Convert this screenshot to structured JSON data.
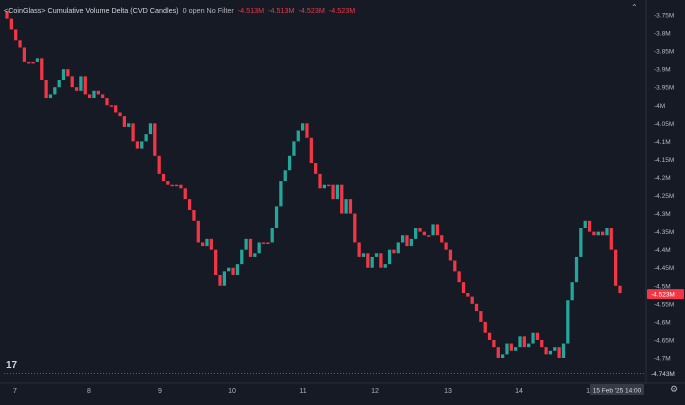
{
  "header": {
    "title": "<CoinGlass> Cumulative Volume Delta (CVD Candles)",
    "status": "0 open No Filter",
    "ohlc": [
      "-4.513M",
      "-4.513M",
      "-4.523M",
      "-4.523M"
    ]
  },
  "colors": {
    "background": "#161a25",
    "up": "#26a69a",
    "down": "#f23645",
    "grid": "#2a2e39",
    "text": "#b2b5be"
  },
  "icons": {
    "logo": "tradingview-logo-icon",
    "collapse": "chevron-up-icon",
    "settings": "gear-icon"
  },
  "chart_data": {
    "type": "candlestick",
    "yunit": "M",
    "ylim": [
      -4.75,
      -3.74
    ],
    "y_ticks": [
      "-3.75M",
      "-3.8M",
      "-3.85M",
      "-3.9M",
      "-3.95M",
      "-4M",
      "-4.05M",
      "-4.1M",
      "-4.15M",
      "-4.2M",
      "-4.25M",
      "-4.3M",
      "-4.35M",
      "-4.4M",
      "-4.45M",
      "-4.5M",
      "-4.55M",
      "-4.6M",
      "-4.65M",
      "-4.7M"
    ],
    "y_tick_values": [
      -3.75,
      -3.8,
      -3.85,
      -3.9,
      -3.95,
      -4.0,
      -4.05,
      -4.1,
      -4.15,
      -4.2,
      -4.25,
      -4.3,
      -4.35,
      -4.4,
      -4.45,
      -4.5,
      -4.55,
      -4.6,
      -4.65,
      -4.7
    ],
    "x_ticks": [
      "7",
      "8",
      "9",
      "10",
      "11",
      "12",
      "13",
      "14",
      "15"
    ],
    "current_label": "-4.523M",
    "current_value": -4.523,
    "low_label": "-4.743M",
    "low_value": -4.743,
    "crosshair_time_label": "15 Feb '25   14:00",
    "grid": false,
    "close": [
      -3.76,
      -3.79,
      -3.82,
      -3.84,
      -3.88,
      -3.88,
      -3.88,
      -3.87,
      -3.93,
      -3.98,
      -3.97,
      -3.95,
      -3.93,
      -3.9,
      -3.92,
      -3.95,
      -3.96,
      -3.92,
      -3.97,
      -3.98,
      -3.96,
      -3.97,
      -3.98,
      -4.0,
      -4.0,
      -4.02,
      -4.03,
      -4.06,
      -4.05,
      -4.1,
      -4.12,
      -4.1,
      -4.08,
      -4.05,
      -4.14,
      -4.19,
      -4.21,
      -4.22,
      -4.22,
      -4.22,
      -4.23,
      -4.26,
      -4.29,
      -4.32,
      -4.38,
      -4.39,
      -4.37,
      -4.4,
      -4.47,
      -4.5,
      -4.46,
      -4.45,
      -4.47,
      -4.44,
      -4.4,
      -4.37,
      -4.42,
      -4.41,
      -4.38,
      -4.38,
      -4.38,
      -4.34,
      -4.28,
      -4.21,
      -4.18,
      -4.14,
      -4.1,
      -4.07,
      -4.05,
      -4.09,
      -4.16,
      -4.19,
      -4.23,
      -4.22,
      -4.22,
      -4.26,
      -4.22,
      -4.3,
      -4.26,
      -4.3,
      -4.38,
      -4.42,
      -4.41,
      -4.45,
      -4.42,
      -4.41,
      -4.45,
      -4.44,
      -4.4,
      -4.41,
      -4.38,
      -4.36,
      -4.39,
      -4.37,
      -4.34,
      -4.35,
      -4.36,
      -4.36,
      -4.33,
      -4.36,
      -4.38,
      -4.4,
      -4.43,
      -4.46,
      -4.49,
      -4.52,
      -4.53,
      -4.55,
      -4.57,
      -4.6,
      -4.63,
      -4.65,
      -4.67,
      -4.7,
      -4.69,
      -4.66,
      -4.68,
      -4.67,
      -4.64,
      -4.67,
      -4.66,
      -4.63,
      -4.65,
      -4.67,
      -4.69,
      -4.68,
      -4.67,
      -4.7,
      -4.66,
      -4.54,
      -4.49,
      -4.42,
      -4.34,
      -4.32,
      -4.35,
      -4.36,
      -4.35,
      -4.36,
      -4.34,
      -4.4,
      -4.5,
      -4.52
    ]
  }
}
